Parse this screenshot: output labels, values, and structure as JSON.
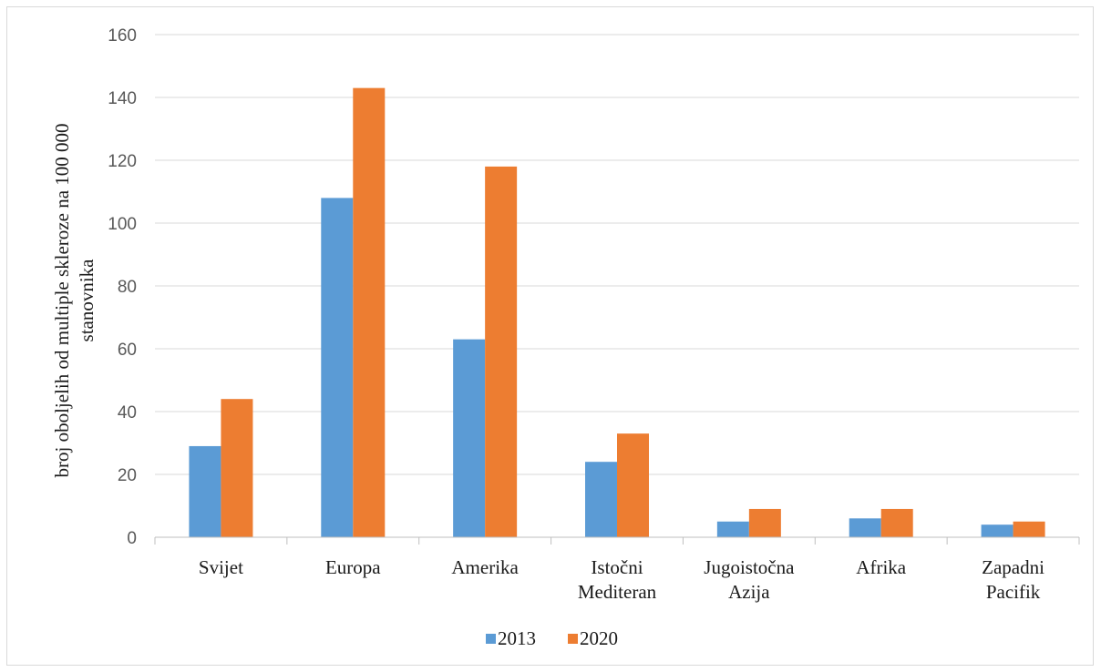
{
  "chart_data": {
    "type": "bar",
    "title": "",
    "xlabel": "",
    "ylabel": "broj oboljelih od multiple skleroze na 100 000 stanovnika",
    "ylabel_lines": [
      "broj oboljelih od multiple skleroze na 100 000",
      "stanovnika"
    ],
    "ylim": [
      0,
      160
    ],
    "yticks": [
      0,
      20,
      40,
      60,
      80,
      100,
      120,
      140,
      160
    ],
    "grid": true,
    "legend_position": "bottom",
    "categories": [
      [
        "Svijet"
      ],
      [
        "Europa"
      ],
      [
        "Amerika"
      ],
      [
        "Istočni",
        "Mediteran"
      ],
      [
        "Jugoistočna",
        "Azija"
      ],
      [
        "Afrika"
      ],
      [
        "Zapadni",
        "Pacifik"
      ]
    ],
    "series": [
      {
        "name": "2013",
        "color": "#5b9bd5",
        "values": [
          29,
          108,
          63,
          24,
          5,
          6,
          4
        ]
      },
      {
        "name": "2020",
        "color": "#ed7d31",
        "values": [
          44,
          143,
          118,
          33,
          9,
          9,
          5
        ]
      }
    ]
  }
}
